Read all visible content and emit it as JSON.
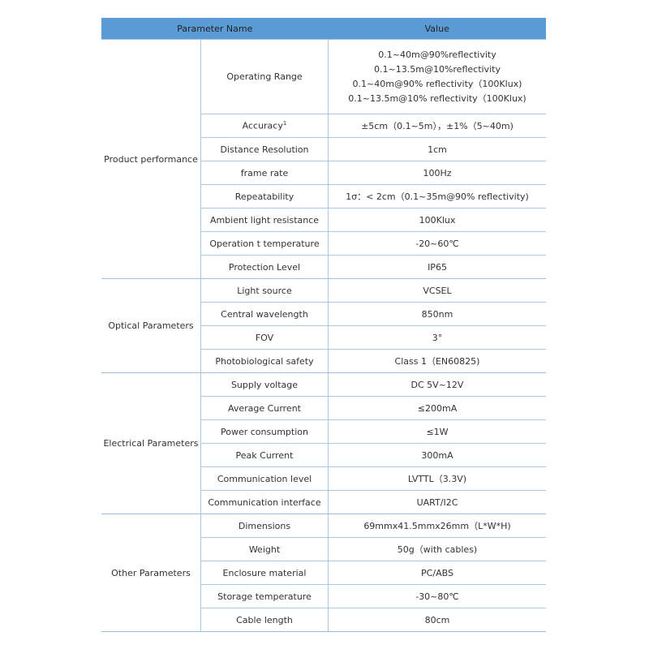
{
  "header": {
    "col1": "Parameter Name",
    "col2": "Value"
  },
  "groups": [
    {
      "name": "Product performance",
      "rows": [
        {
          "name": "Operating Range",
          "values": [
            "0.1~40m@90%reflectivity",
            "0.1~13.5m@10%reflectivity",
            "0.1~40m@90% reflectivity（100Klux)",
            "0.1~13.5m@10% reflectivity（100Klux)"
          ]
        },
        {
          "name": "Accuracy",
          "sup": "1",
          "value": "±5cm（0.1~5m），±1%（5~40m)"
        },
        {
          "name": "Distance Resolution",
          "value": "1cm"
        },
        {
          "name": "frame rate",
          "value": "100Hz"
        },
        {
          "name": "Repeatability",
          "value": "1σ：< 2cm（0.1~35m@90% reflectivity)"
        },
        {
          "name": "Ambient light resistance",
          "value": "100Klux"
        },
        {
          "name": "Operation t temperature",
          "value": "-20~60℃"
        },
        {
          "name": "Protection Level",
          "value": "IP65"
        }
      ]
    },
    {
      "name": "Optical Parameters",
      "rows": [
        {
          "name": "Light source",
          "value": "VCSEL"
        },
        {
          "name": "Central wavelength",
          "value": "850nm"
        },
        {
          "name": "FOV",
          "value": "3°"
        },
        {
          "name": "Photobiological safety",
          "value": "Class 1（EN60825)"
        }
      ]
    },
    {
      "name": "Electrical Parameters",
      "rows": [
        {
          "name": "Supply voltage",
          "value": "DC 5V~12V"
        },
        {
          "name": "Average Current",
          "value": "≤200mA"
        },
        {
          "name": "Power consumption",
          "value": "≤1W"
        },
        {
          "name": "Peak Current",
          "value": "300mA"
        },
        {
          "name": "Communication level",
          "value": "LVTTL（3.3V)"
        },
        {
          "name": "Communication interface",
          "value": "UART/I2C"
        }
      ]
    },
    {
      "name": "Other Parameters",
      "rows": [
        {
          "name": "Dimensions",
          "value": "69mmx41.5mmx26mm（L*W*H)"
        },
        {
          "name": "Weight",
          "value": "50g（with cables)"
        },
        {
          "name": "Enclosure material",
          "value": "PC/ABS"
        },
        {
          "name": "Storage temperature",
          "value": "-30~80℃"
        },
        {
          "name": "Cable length",
          "value": "80cm"
        }
      ]
    }
  ],
  "colors": {
    "header": "#5b9bd5",
    "grid": "#a9c8e8"
  }
}
